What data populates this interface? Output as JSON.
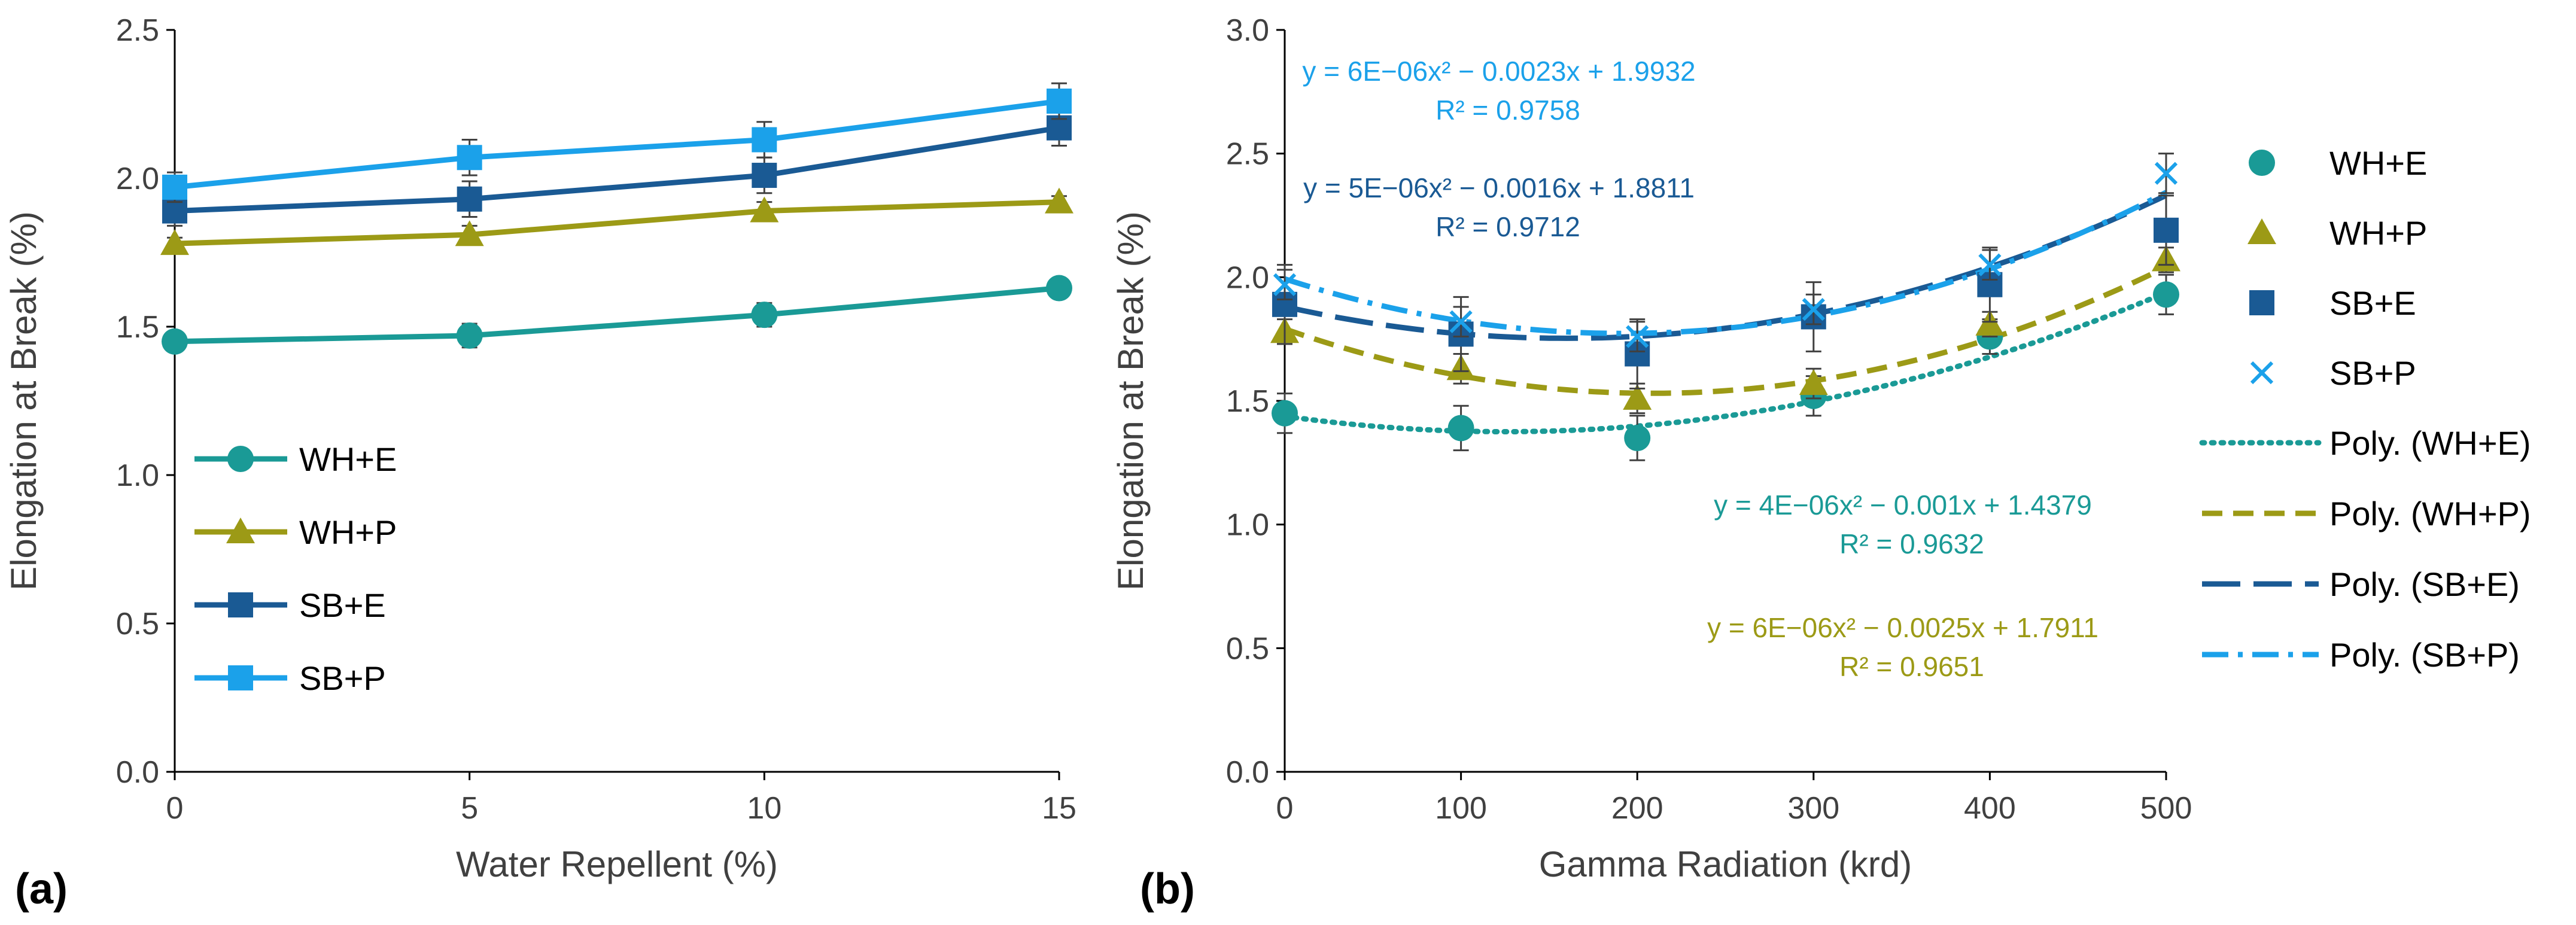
{
  "chart_data": [
    {
      "panel": "(a)",
      "type": "line",
      "xlabel": "Water Repellent (%)",
      "ylabel": "Elongation at Break (%)",
      "x": [
        0,
        5,
        10,
        15
      ],
      "xlim": [
        0,
        15
      ],
      "ylim": [
        0,
        2.5
      ],
      "xticks": [
        "0",
        "5",
        "10",
        "15"
      ],
      "yticks": [
        "0.0",
        "0.5",
        "1.0",
        "1.5",
        "2.0",
        "2.5"
      ],
      "grid": false,
      "legend": "bottom-left",
      "series": [
        {
          "name": "WH+E",
          "marker": "circle",
          "color": "#1a9a96",
          "values": [
            1.45,
            1.47,
            1.54,
            1.63
          ],
          "err": [
            0.03,
            0.04,
            0.04,
            0.03
          ]
        },
        {
          "name": "WH+P",
          "marker": "triangle",
          "color": "#9c9a16",
          "values": [
            1.78,
            1.81,
            1.89,
            1.92
          ],
          "err": [
            0.02,
            0.03,
            0.03,
            0.02
          ]
        },
        {
          "name": "SB+E",
          "marker": "square",
          "color": "#1a5a94",
          "values": [
            1.89,
            1.93,
            2.01,
            2.17
          ],
          "err": [
            0.05,
            0.06,
            0.06,
            0.06
          ]
        },
        {
          "name": "SB+P",
          "marker": "square",
          "color": "#1ba1ea",
          "values": [
            1.97,
            2.07,
            2.13,
            2.26
          ],
          "err": [
            0.05,
            0.06,
            0.06,
            0.06
          ]
        }
      ]
    },
    {
      "panel": "(b)",
      "type": "scatter",
      "xlabel": "Gamma Radiation (krd)",
      "ylabel": "Elongation at Break (%)",
      "x": [
        0,
        100,
        200,
        300,
        400,
        500
      ],
      "xlim": [
        0,
        500
      ],
      "ylim": [
        0,
        3.0
      ],
      "xticks": [
        "0",
        "100",
        "200",
        "300",
        "400",
        "500"
      ],
      "yticks": [
        "0.0",
        "0.5",
        "1.0",
        "1.5",
        "2.0",
        "2.5",
        "3.0"
      ],
      "grid": false,
      "legend": "right",
      "series": [
        {
          "name": "WH+E",
          "marker": "circle",
          "color": "#1a9a96",
          "values": [
            1.45,
            1.39,
            1.35,
            1.52,
            1.76,
            1.93
          ],
          "err": [
            0.08,
            0.09,
            0.09,
            0.08,
            0.07,
            0.08
          ]
        },
        {
          "name": "WH+P",
          "marker": "triangle",
          "color": "#9c9a16",
          "values": [
            1.78,
            1.63,
            1.51,
            1.57,
            1.81,
            2.07
          ],
          "err": [
            0.05,
            0.06,
            0.06,
            0.06,
            0.05,
            0.05
          ]
        },
        {
          "name": "SB+E",
          "marker": "square",
          "color": "#1a5a94",
          "values": [
            1.89,
            1.77,
            1.69,
            1.84,
            1.97,
            2.19
          ],
          "err": [
            0.16,
            0.15,
            0.14,
            0.14,
            0.15,
            0.14
          ]
        },
        {
          "name": "SB+P",
          "marker": "x",
          "color": "#1ba1ea",
          "values": [
            1.97,
            1.82,
            1.76,
            1.87,
            2.05,
            2.42
          ],
          "err": [
            0.06,
            0.06,
            0.06,
            0.06,
            0.06,
            0.08
          ]
        }
      ],
      "trendlines": [
        {
          "name": "Poly. (WH+E)",
          "color": "#1a9a96",
          "dash": "dotted",
          "coef": [
            4e-06,
            -0.001,
            1.4379
          ],
          "equation": "y = 4E−06x² − 0.001x + 1.4379",
          "r2": "R² = 0.9632"
        },
        {
          "name": "Poly. (WH+P)",
          "color": "#9c9a16",
          "dash": "dashed",
          "coef": [
            6e-06,
            -0.0025,
            1.7911
          ],
          "equation": "y = 6E−06x² − 0.0025x + 1.7911",
          "r2": "R² = 0.9651"
        },
        {
          "name": "Poly. (SB+E)",
          "color": "#1a5a94",
          "dash": "longdash",
          "coef": [
            5e-06,
            -0.0016,
            1.8811
          ],
          "equation": "y = 5E−06x² − 0.0016x + 1.8811",
          "r2": "R² = 0.9712"
        },
        {
          "name": "Poly. (SB+P)",
          "color": "#1ba1ea",
          "dash": "dashdot",
          "coef": [
            6e-06,
            -0.0023,
            1.9932
          ],
          "equation": "y = 6E−06x² − 0.0023x + 1.9932",
          "r2": "R² = 0.9758"
        }
      ]
    }
  ]
}
